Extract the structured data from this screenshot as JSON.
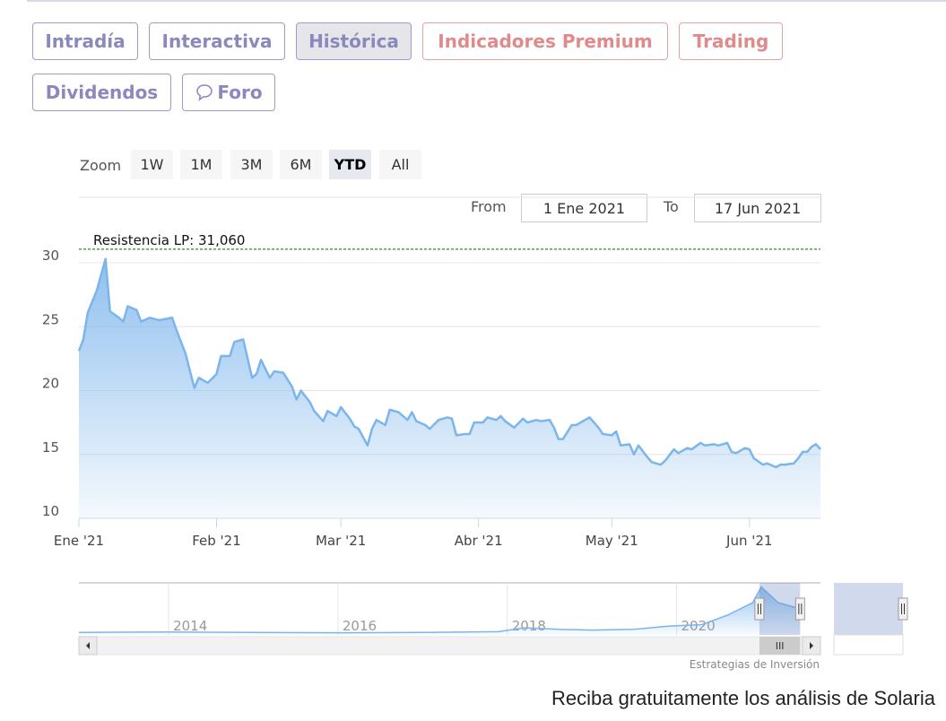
{
  "tabs": [
    {
      "label": "Intradía",
      "style": "normal"
    },
    {
      "label": "Interactiva",
      "style": "normal"
    },
    {
      "label": "Histórica",
      "style": "active"
    },
    {
      "label": "Indicadores Premium",
      "style": "red"
    },
    {
      "label": "Trading",
      "style": "red"
    },
    {
      "label": "Dividendos",
      "style": "normal"
    },
    {
      "label": "Foro",
      "style": "normal",
      "icon": "speech-bubble-icon"
    }
  ],
  "zoom": {
    "label": "Zoom",
    "buttons": [
      "1W",
      "1M",
      "3M",
      "6M",
      "YTD",
      "All"
    ],
    "selected": "YTD"
  },
  "range": {
    "from_label": "From",
    "from": "1 Ene 2021",
    "to_label": "To",
    "to": "17 Jun 2021"
  },
  "credit": "Estrategias de Inversión",
  "promo": "Reciba gratuitamente los análisis de Solaria",
  "colors": {
    "line": "#7cb5ec",
    "resistance": "#2e8b2e",
    "tab_text": "#8a88bd",
    "tab_red": "#e08a8a"
  },
  "chart_data": {
    "type": "area",
    "ylim": [
      10,
      30.5
    ],
    "yticks": [
      10,
      15,
      20,
      25,
      30
    ],
    "xlim": [
      "2021-01-01",
      "2021-06-17"
    ],
    "xticks": [
      {
        "date": "2021-01-01",
        "label": "Ene '21"
      },
      {
        "date": "2021-02-01",
        "label": "Feb '21"
      },
      {
        "date": "2021-03-01",
        "label": "Mar '21"
      },
      {
        "date": "2021-04-01",
        "label": "Abr '21"
      },
      {
        "date": "2021-05-01",
        "label": "May '21"
      },
      {
        "date": "2021-06-01",
        "label": "Jun '21"
      }
    ],
    "grid": true,
    "annotation": {
      "label": "Resistencia LP: 31,060",
      "value": 31.06
    },
    "points": [
      [
        "2021-01-01",
        23.1
      ],
      [
        "2021-01-02",
        24.0
      ],
      [
        "2021-01-03",
        26.1
      ],
      [
        "2021-01-05",
        27.8
      ],
      [
        "2021-01-07",
        30.3
      ],
      [
        "2021-01-08",
        26.2
      ],
      [
        "2021-01-10",
        25.7
      ],
      [
        "2021-01-11",
        25.4
      ],
      [
        "2021-01-12",
        26.6
      ],
      [
        "2021-01-14",
        26.3
      ],
      [
        "2021-01-15",
        25.4
      ],
      [
        "2021-01-17",
        25.7
      ],
      [
        "2021-01-19",
        25.5
      ],
      [
        "2021-01-22",
        25.7
      ],
      [
        "2021-01-23",
        24.7
      ],
      [
        "2021-01-25",
        22.9
      ],
      [
        "2021-01-27",
        20.2
      ],
      [
        "2021-01-28",
        21.0
      ],
      [
        "2021-01-30",
        20.6
      ],
      [
        "2021-02-01",
        21.3
      ],
      [
        "2021-02-02",
        22.7
      ],
      [
        "2021-02-04",
        22.7
      ],
      [
        "2021-02-05",
        23.8
      ],
      [
        "2021-02-07",
        24.0
      ],
      [
        "2021-02-09",
        21.0
      ],
      [
        "2021-02-10",
        21.3
      ],
      [
        "2021-02-11",
        22.4
      ],
      [
        "2021-02-13",
        21.0
      ],
      [
        "2021-02-14",
        21.5
      ],
      [
        "2021-02-16",
        21.4
      ],
      [
        "2021-02-18",
        20.3
      ],
      [
        "2021-02-19",
        19.3
      ],
      [
        "2021-02-20",
        20.0
      ],
      [
        "2021-02-22",
        19.1
      ],
      [
        "2021-02-23",
        18.4
      ],
      [
        "2021-02-25",
        17.6
      ],
      [
        "2021-02-26",
        18.4
      ],
      [
        "2021-02-28",
        18.0
      ],
      [
        "2021-03-01",
        18.7
      ],
      [
        "2021-03-03",
        17.8
      ],
      [
        "2021-03-04",
        17.2
      ],
      [
        "2021-03-05",
        17.0
      ],
      [
        "2021-03-07",
        15.7
      ],
      [
        "2021-03-08",
        17.0
      ],
      [
        "2021-03-09",
        17.7
      ],
      [
        "2021-03-11",
        17.3
      ],
      [
        "2021-03-12",
        18.5
      ],
      [
        "2021-03-14",
        18.3
      ],
      [
        "2021-03-16",
        17.7
      ],
      [
        "2021-03-17",
        18.3
      ],
      [
        "2021-03-18",
        17.6
      ],
      [
        "2021-03-20",
        17.3
      ],
      [
        "2021-03-21",
        17.0
      ],
      [
        "2021-03-23",
        17.7
      ],
      [
        "2021-03-25",
        17.9
      ],
      [
        "2021-03-26",
        17.8
      ],
      [
        "2021-03-27",
        16.5
      ],
      [
        "2021-03-29",
        16.6
      ],
      [
        "2021-03-30",
        16.6
      ],
      [
        "2021-03-31",
        17.5
      ],
      [
        "2021-04-02",
        17.5
      ],
      [
        "2021-04-03",
        17.9
      ],
      [
        "2021-04-05",
        17.7
      ],
      [
        "2021-04-06",
        18.0
      ],
      [
        "2021-04-07",
        17.6
      ],
      [
        "2021-04-09",
        17.1
      ],
      [
        "2021-04-11",
        17.8
      ],
      [
        "2021-04-12",
        17.5
      ],
      [
        "2021-04-14",
        17.7
      ],
      [
        "2021-04-15",
        17.6
      ],
      [
        "2021-04-17",
        17.7
      ],
      [
        "2021-04-18",
        17.1
      ],
      [
        "2021-04-19",
        16.2
      ],
      [
        "2021-04-20",
        16.2
      ],
      [
        "2021-04-22",
        17.3
      ],
      [
        "2021-04-23",
        17.3
      ],
      [
        "2021-04-25",
        17.7
      ],
      [
        "2021-04-26",
        17.9
      ],
      [
        "2021-04-28",
        17.1
      ],
      [
        "2021-04-29",
        16.6
      ],
      [
        "2021-05-01",
        16.5
      ],
      [
        "2021-05-02",
        16.8
      ],
      [
        "2021-05-03",
        15.7
      ],
      [
        "2021-05-05",
        15.8
      ],
      [
        "2021-05-06",
        15.0
      ],
      [
        "2021-05-07",
        15.7
      ],
      [
        "2021-05-09",
        14.8
      ],
      [
        "2021-05-10",
        14.4
      ],
      [
        "2021-05-12",
        14.2
      ],
      [
        "2021-05-13",
        14.5
      ],
      [
        "2021-05-15",
        15.4
      ],
      [
        "2021-05-16",
        15.1
      ],
      [
        "2021-05-18",
        15.5
      ],
      [
        "2021-05-19",
        15.4
      ],
      [
        "2021-05-21",
        15.9
      ],
      [
        "2021-05-22",
        15.7
      ],
      [
        "2021-05-24",
        15.8
      ],
      [
        "2021-05-25",
        15.7
      ],
      [
        "2021-05-27",
        15.9
      ],
      [
        "2021-05-28",
        15.2
      ],
      [
        "2021-05-29",
        15.1
      ],
      [
        "2021-05-31",
        15.5
      ],
      [
        "2021-06-01",
        15.4
      ],
      [
        "2021-06-02",
        14.7
      ],
      [
        "2021-06-04",
        14.2
      ],
      [
        "2021-06-05",
        14.3
      ],
      [
        "2021-06-07",
        14.0
      ],
      [
        "2021-06-08",
        14.2
      ],
      [
        "2021-06-09",
        14.2
      ],
      [
        "2021-06-11",
        14.3
      ],
      [
        "2021-06-12",
        14.7
      ],
      [
        "2021-06-13",
        15.2
      ],
      [
        "2021-06-14",
        15.2
      ],
      [
        "2021-06-15",
        15.6
      ],
      [
        "2021-06-16",
        15.8
      ],
      [
        "2021-06-17",
        15.4
      ]
    ],
    "navigator": {
      "xticks": [
        "2014",
        "2016",
        "2018",
        "2020"
      ],
      "xlim": [
        2012.94,
        2021.7
      ],
      "points": [
        [
          2012.94,
          1
        ],
        [
          2014,
          1.3
        ],
        [
          2015,
          1
        ],
        [
          2016,
          0.8
        ],
        [
          2017,
          1
        ],
        [
          2017.9,
          1.5
        ],
        [
          2018.2,
          4
        ],
        [
          2018.6,
          3
        ],
        [
          2019,
          2.5
        ],
        [
          2019.5,
          3
        ],
        [
          2019.9,
          5
        ],
        [
          2020.3,
          6
        ],
        [
          2020.6,
          12
        ],
        [
          2020.9,
          20
        ],
        [
          2021.0,
          30
        ],
        [
          2021.2,
          20
        ],
        [
          2021.46,
          16
        ]
      ],
      "selection": [
        "2021-01-01",
        "2021-06-17"
      ]
    }
  }
}
